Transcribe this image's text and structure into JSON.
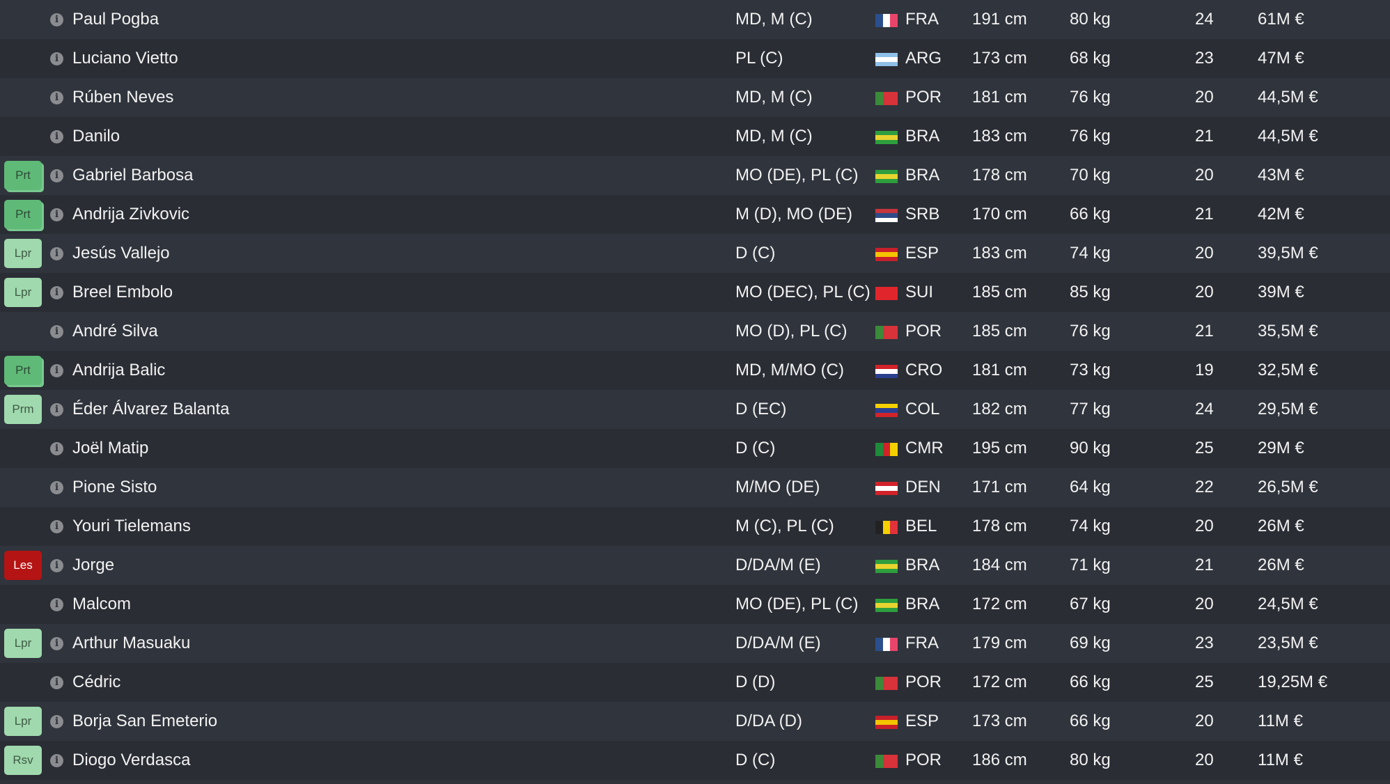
{
  "players": [
    {
      "badge": "",
      "name": "Paul Pogba",
      "position": "MD, M (C)",
      "nation": "FRA",
      "height": "191 cm",
      "weight": "80 kg",
      "age": "24",
      "value": "61M €"
    },
    {
      "badge": "",
      "name": "Luciano Vietto",
      "position": "PL (C)",
      "nation": "ARG",
      "height": "173 cm",
      "weight": "68 kg",
      "age": "23",
      "value": "47M €"
    },
    {
      "badge": "",
      "name": "Rúben Neves",
      "position": "MD, M (C)",
      "nation": "POR",
      "height": "181 cm",
      "weight": "76 kg",
      "age": "20",
      "value": "44,5M €"
    },
    {
      "badge": "",
      "name": "Danilo",
      "position": "MD, M (C)",
      "nation": "BRA",
      "height": "183 cm",
      "weight": "76 kg",
      "age": "21",
      "value": "44,5M €"
    },
    {
      "badge": "Prt",
      "name": "Gabriel Barbosa",
      "position": "MO (DE), PL (C)",
      "nation": "BRA",
      "height": "178 cm",
      "weight": "70 kg",
      "age": "20",
      "value": "43M €"
    },
    {
      "badge": "Prt",
      "name": "Andrija Zivkovic",
      "position": "M (D), MO (DE)",
      "nation": "SRB",
      "height": "170 cm",
      "weight": "66 kg",
      "age": "21",
      "value": "42M €"
    },
    {
      "badge": "Lpr",
      "name": "Jesús Vallejo",
      "position": "D (C)",
      "nation": "ESP",
      "height": "183 cm",
      "weight": "74 kg",
      "age": "20",
      "value": "39,5M €"
    },
    {
      "badge": "Lpr",
      "name": "Breel Embolo",
      "position": "MO (DEC), PL (C)",
      "nation": "SUI",
      "height": "185 cm",
      "weight": "85 kg",
      "age": "20",
      "value": "39M €"
    },
    {
      "badge": "",
      "name": "André Silva",
      "position": "MO (D), PL (C)",
      "nation": "POR",
      "height": "185 cm",
      "weight": "76 kg",
      "age": "21",
      "value": "35,5M €"
    },
    {
      "badge": "Prt",
      "name": "Andrija Balic",
      "position": "MD, M/MO (C)",
      "nation": "CRO",
      "height": "181 cm",
      "weight": "73 kg",
      "age": "19",
      "value": "32,5M €"
    },
    {
      "badge": "Prm",
      "name": "Éder Álvarez Balanta",
      "position": "D (EC)",
      "nation": "COL",
      "height": "182 cm",
      "weight": "77 kg",
      "age": "24",
      "value": "29,5M €"
    },
    {
      "badge": "",
      "name": "Joël Matip",
      "position": "D (C)",
      "nation": "CMR",
      "height": "195 cm",
      "weight": "90 kg",
      "age": "25",
      "value": "29M €"
    },
    {
      "badge": "",
      "name": "Pione Sisto",
      "position": "M/MO (DE)",
      "nation": "DEN",
      "height": "171 cm",
      "weight": "64 kg",
      "age": "22",
      "value": "26,5M €"
    },
    {
      "badge": "",
      "name": "Youri Tielemans",
      "position": "M (C), PL (C)",
      "nation": "BEL",
      "height": "178 cm",
      "weight": "74 kg",
      "age": "20",
      "value": "26M €"
    },
    {
      "badge": "Les",
      "name": "Jorge",
      "position": "D/DA/M (E)",
      "nation": "BRA",
      "height": "184 cm",
      "weight": "71 kg",
      "age": "21",
      "value": "26M €"
    },
    {
      "badge": "",
      "name": "Malcom",
      "position": "MO (DE), PL (C)",
      "nation": "BRA",
      "height": "172 cm",
      "weight": "67 kg",
      "age": "20",
      "value": "24,5M €"
    },
    {
      "badge": "Lpr",
      "name": "Arthur Masuaku",
      "position": "D/DA/M (E)",
      "nation": "FRA",
      "height": "179 cm",
      "weight": "69 kg",
      "age": "23",
      "value": "23,5M €"
    },
    {
      "badge": "",
      "name": "Cédric",
      "position": "D (D)",
      "nation": "POR",
      "height": "172 cm",
      "weight": "66 kg",
      "age": "25",
      "value": "19,25M €"
    },
    {
      "badge": "Lpr",
      "name": "Borja San Emeterio",
      "position": "D/DA (D)",
      "nation": "ESP",
      "height": "173 cm",
      "weight": "66 kg",
      "age": "20",
      "value": "11M €"
    },
    {
      "badge": "Rsv",
      "name": "Diogo Verdasca",
      "position": "D (C)",
      "nation": "POR",
      "height": "186 cm",
      "weight": "80 kg",
      "age": "20",
      "value": "11M €"
    }
  ],
  "info_icon": "info-icon",
  "flag_colors": {
    "FRA": {
      "dir": "v",
      "c": [
        "#2b4f8c",
        "#ffffff",
        "#e8456a"
      ]
    },
    "ARG": {
      "dir": "h",
      "c": [
        "#8fc0e8",
        "#ffffff",
        "#8fc0e8"
      ]
    },
    "POR": {
      "dir": "v",
      "c": [
        "#3a8a3a",
        "#d8323a",
        "#d8323a"
      ]
    },
    "BRA": {
      "dir": "h",
      "c": [
        "#2e9e3e",
        "#e8d430",
        "#2e9e3e"
      ]
    },
    "SRB": {
      "dir": "h",
      "c": [
        "#c6363c",
        "#2f4a88",
        "#ffffff"
      ]
    },
    "ESP": {
      "dir": "h",
      "c": [
        "#c8202a",
        "#f5c400",
        "#c8202a"
      ]
    },
    "SUI": {
      "dir": "h",
      "c": [
        "#e0262c",
        "#e0262c",
        "#e0262c"
      ]
    },
    "CRO": {
      "dir": "h",
      "c": [
        "#d2232a",
        "#ffffff",
        "#2a3f8f"
      ]
    },
    "COL": {
      "dir": "h",
      "c": [
        "#f5d000",
        "#2a3f8f",
        "#d2232a"
      ]
    },
    "CMR": {
      "dir": "v",
      "c": [
        "#1f8a3b",
        "#d2232a",
        "#f5d000"
      ]
    },
    "DEN": {
      "dir": "h",
      "c": [
        "#d2232a",
        "#ffffff",
        "#d2232a"
      ]
    },
    "BEL": {
      "dir": "v",
      "c": [
        "#222222",
        "#f5d000",
        "#e2323a"
      ]
    }
  }
}
